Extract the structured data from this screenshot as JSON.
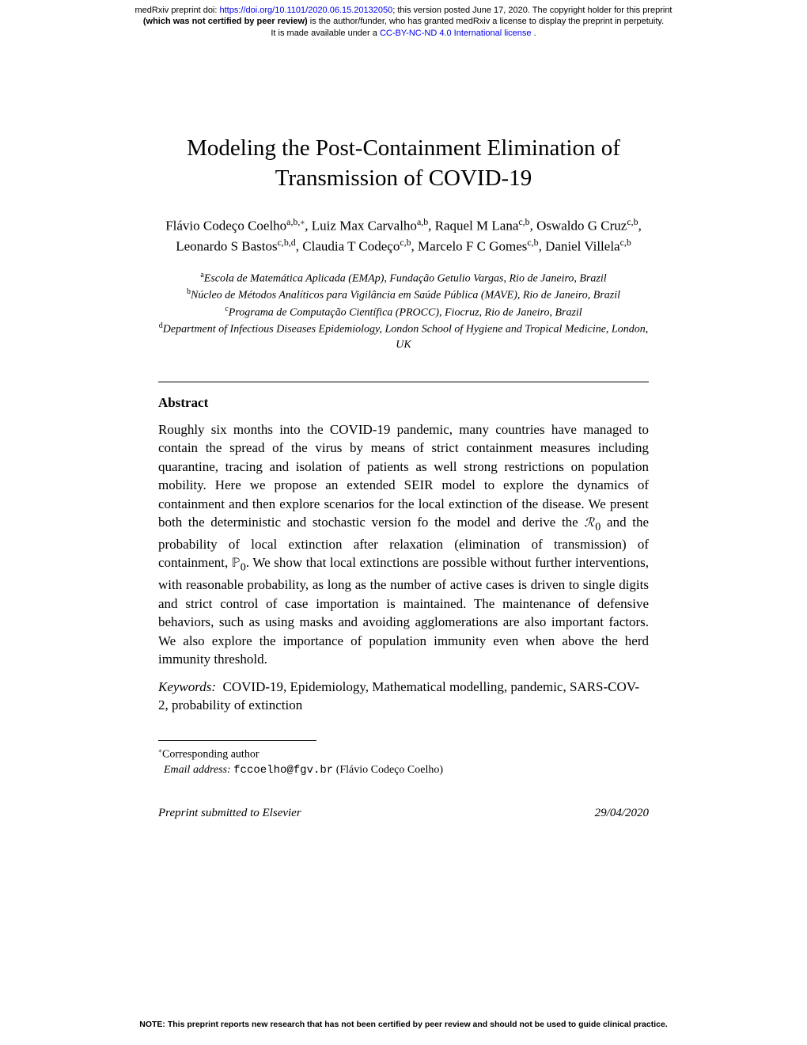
{
  "preprint_header": {
    "line1_pre": "medRxiv preprint doi: ",
    "doi_link": "https://doi.org/10.1101/2020.06.15.20132050",
    "line1_post": "; this version posted June 17, 2020. The copyright holder for this preprint",
    "line2_bold": "(which was not certified by peer review)",
    "line2_rest": " is the author/funder, who has granted medRxiv a license to display the preprint in perpetuity.",
    "line3_pre": "It is made available under a ",
    "license_link": "CC-BY-NC-ND 4.0 International license",
    "line3_post": " ."
  },
  "title": "Modeling the Post-Containment Elimination of Transmission of COVID-19",
  "authors_html": "Flávio Codeço Coelho<sup>a,b,*</sup>, Luiz Max Carvalho<sup>a,b</sup>, Raquel M Lana<sup>c,b</sup>, Oswaldo G Cruz<sup>c,b</sup>, Leonardo S Bastos<sup>c,b,d</sup>, Claudia T Codeço<sup>c,b</sup>, Marcelo F C Gomes<sup>c,b</sup>, Daniel Villela<sup>c,b</sup>",
  "affiliations": [
    {
      "sup": "a",
      "text": "Escola de Matemática Aplicada (EMAp), Fundação Getulio Vargas, Rio de Janeiro, Brazil"
    },
    {
      "sup": "b",
      "text": "Núcleo de Métodos Analíticos para Vigilância em Saúde Pública (MAVE), Rio de Janeiro, Brazil"
    },
    {
      "sup": "c",
      "text": "Programa de Computação Científica (PROCC), Fiocruz, Rio de Janeiro, Brazil"
    },
    {
      "sup": "d",
      "text": "Department of Infectious Diseases Epidemiology, London School of Hygiene and Tropical Medicine, London, UK"
    }
  ],
  "abstract_heading": "Abstract",
  "abstract_text": "Roughly six months into the COVID-19 pandemic, many countries have managed to contain the spread of the virus by means of strict containment measures including quarantine, tracing and isolation of patients as well strong restrictions on population mobility. Here we propose an extended SEIR model to explore the dynamics of containment and then explore scenarios for the local extinction of the disease. We present both the deterministic and stochastic version fo the model and derive the ℛ₀ and the probability of local extinction after relaxation (elimination of transmission) of containment, ℙ₀. We show that local extinctions are possible without further interventions, with reasonable probability, as long as the number of active cases is driven to single digits and strict control of case importation is maintained. The maintenance of defensive behaviors, such as using masks and avoiding agglomerations are also important factors. We also explore the importance of population immunity even when above the herd immunity threshold.",
  "keywords_label": "Keywords:",
  "keywords_text": "COVID-19, Epidemiology, Mathematical modelling, pandemic, SARS-COV-2, probability of extinction",
  "footnote": {
    "corresponding": "Corresponding author",
    "email_label": "Email address:",
    "email": "fccoelho@fgv.br",
    "email_name": " (Flávio Codeço Coelho)"
  },
  "footer": {
    "left": "Preprint submitted to Elsevier",
    "right": "29/04/2020"
  },
  "bottom_note": "NOTE: This preprint reports new research that has not been certified by peer review and should not be used to guide clinical practice."
}
